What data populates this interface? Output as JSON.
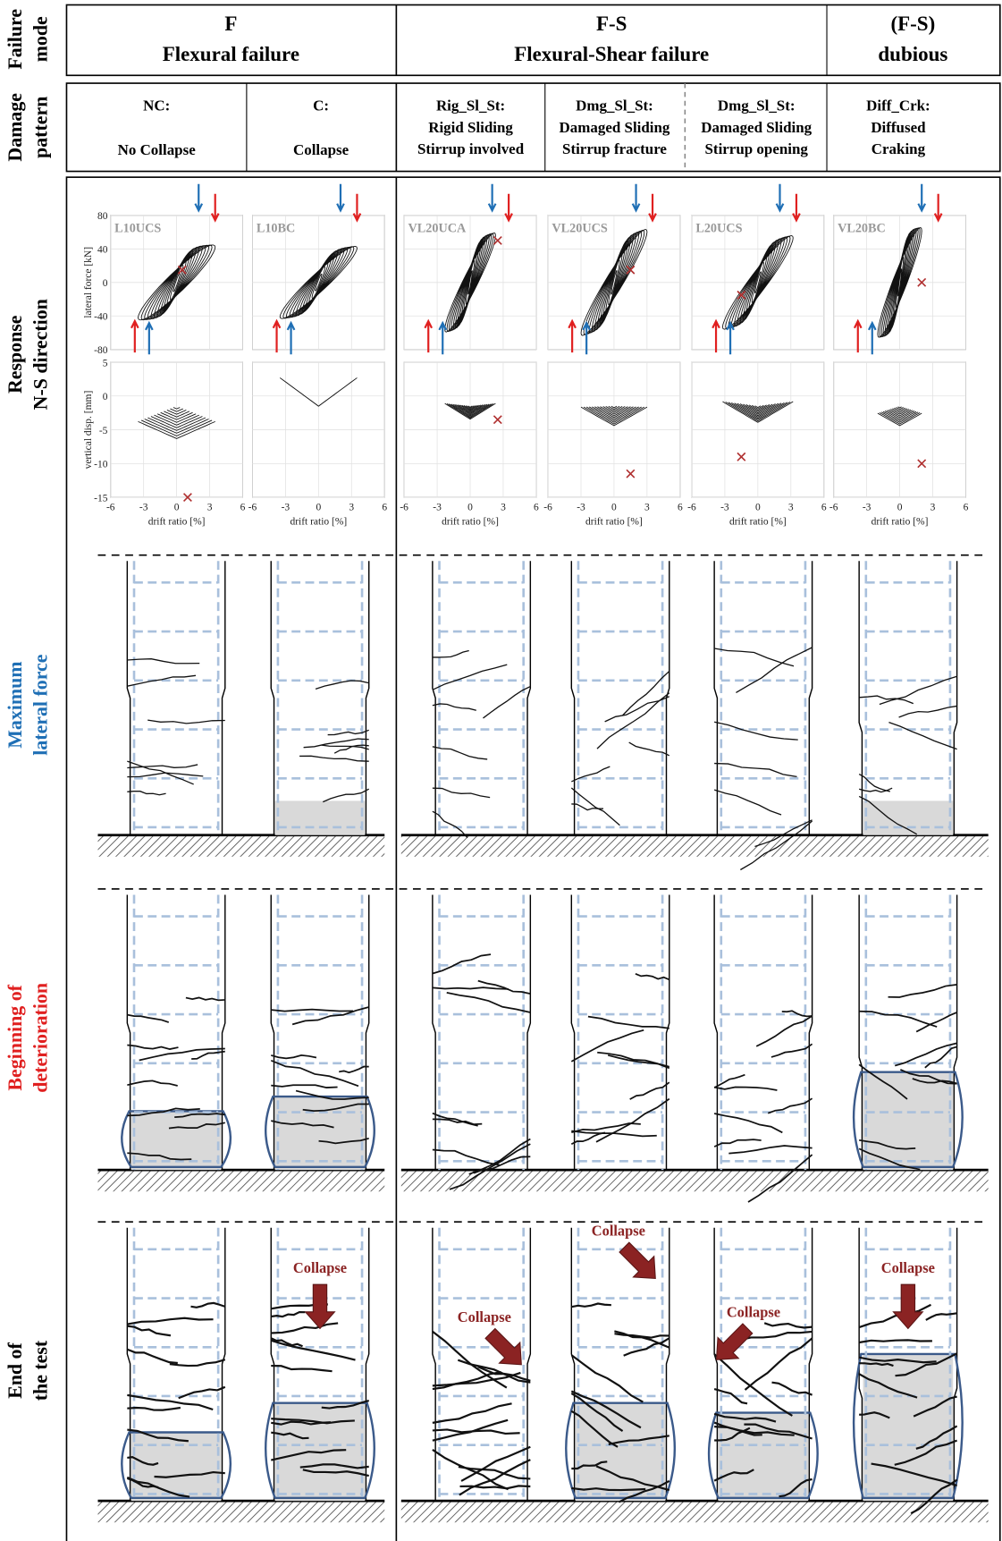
{
  "row_labels": [
    {
      "lines": [
        "Failure",
        "mode"
      ],
      "color": "#000000"
    },
    {
      "lines": [
        "Damage",
        "pattern"
      ],
      "color": "#000000"
    },
    {
      "lines": [
        "Response",
        "N-S direction"
      ],
      "color": "#000000"
    },
    {
      "lines": [
        "Maximum",
        "lateral force"
      ],
      "color": "#1f6fb5"
    },
    {
      "lines": [
        "Beginning of",
        "deterioration"
      ],
      "color": "#e02020"
    },
    {
      "lines": [
        "End of",
        "the test"
      ],
      "color": "#000000"
    }
  ],
  "failure_modes": [
    {
      "code": "F",
      "name": "Flexural failure"
    },
    {
      "code": "F-S",
      "name": "Flexural-Shear failure"
    },
    {
      "code": "(F-S)",
      "name": "dubious"
    }
  ],
  "damage_patterns": [
    {
      "code": "NC:",
      "lines": [
        "No Collapse"
      ]
    },
    {
      "code": "C:",
      "lines": [
        "Collapse"
      ]
    },
    {
      "code": "Rig_Sl_St:",
      "lines": [
        "Rigid Sliding",
        "Stirrup involved"
      ]
    },
    {
      "code": "Dmg_Sl_St:",
      "lines": [
        "Damaged Sliding",
        "Stirrup fracture"
      ]
    },
    {
      "code": "Dmg_Sl_St:",
      "lines": [
        "Damaged Sliding",
        "Stirrup opening"
      ]
    },
    {
      "code": "Diff_Crk:",
      "lines": [
        "Diffused",
        "Craking"
      ]
    }
  ],
  "specimens": [
    "L10UCS",
    "L10BC",
    "VL20UCA",
    "VL20UCS",
    "L20UCS",
    "VL20BC"
  ],
  "force_plot": {
    "ylabel": "lateral force [kN]",
    "yticks": [
      80,
      40,
      0,
      -40,
      -80
    ]
  },
  "disp_plot": {
    "ylabel": "vertical disp. [mm]",
    "yticks": [
      5,
      0,
      -5,
      -10,
      -15
    ]
  },
  "xlabel": "drift ratio [%]",
  "xticks": [
    -6,
    -3,
    0,
    3,
    6
  ],
  "collapse_labels": [
    "Collapse",
    "Collapse",
    "Collapse",
    "Collapse",
    "Collapse"
  ]
}
